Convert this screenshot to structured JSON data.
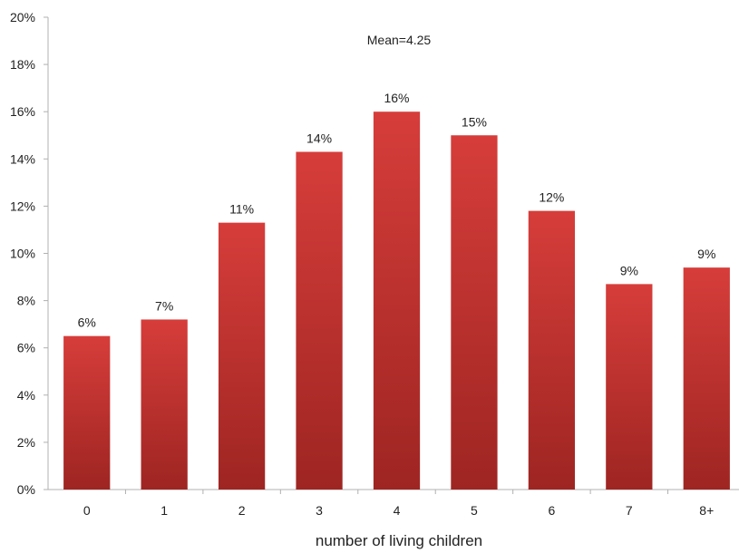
{
  "chart_data": {
    "type": "bar",
    "categories": [
      "0",
      "1",
      "2",
      "3",
      "4",
      "5",
      "6",
      "7",
      "8+"
    ],
    "values": [
      6.5,
      7.2,
      11.3,
      14.3,
      16.0,
      15.0,
      11.8,
      8.7,
      9.4
    ],
    "data_labels": [
      "6%",
      "7%",
      "11%",
      "14%",
      "16%",
      "15%",
      "12%",
      "9%",
      "9%"
    ],
    "title": "",
    "xlabel": "number of living children",
    "ylabel": "",
    "ylim": [
      0,
      20
    ],
    "y_ticks": [
      0,
      2,
      4,
      6,
      8,
      10,
      12,
      14,
      16,
      18,
      20
    ],
    "y_tick_labels": [
      "0%",
      "2%",
      "4%",
      "6%",
      "8%",
      "10%",
      "12%",
      "14%",
      "16%",
      "18%",
      "20%"
    ],
    "annotation": "Mean=4.25",
    "grid": false,
    "legend": "none",
    "bar_color_top": "#d63d3a",
    "bar_color_bottom": "#9e2522",
    "axis_color": "#b0b0b0"
  }
}
